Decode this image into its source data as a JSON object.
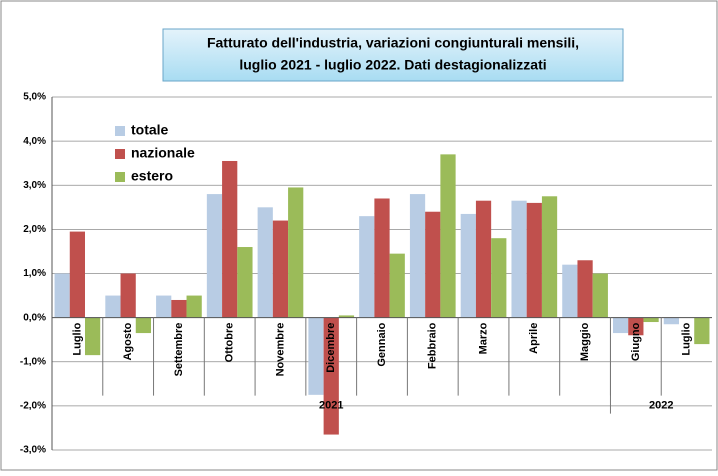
{
  "chart_data": {
    "type": "bar",
    "title": "Fatturato dell'industria, variazioni congiunturali mensili,",
    "subtitle": "luglio 2021 - luglio  2022. Dati destagionalizzati",
    "categories": [
      "Luglio",
      "Agosto",
      "Settembre",
      "Ottobre",
      "Novembre",
      "Dicembre",
      "Gennaio",
      "Febbraio",
      "Marzo",
      "Aprile",
      "Maggio",
      "Giugno",
      "Luglio"
    ],
    "groups": [
      {
        "label": "2021",
        "size": 11
      },
      {
        "label": "2022",
        "size": 2
      }
    ],
    "series": [
      {
        "name": "totale",
        "color": "#b8cce4",
        "values": [
          1.0,
          0.5,
          0.5,
          2.8,
          2.5,
          -1.75,
          2.3,
          2.8,
          2.35,
          2.65,
          1.2,
          -0.35,
          -0.15
        ]
      },
      {
        "name": "nazionale",
        "color": "#c0504d",
        "values": [
          1.95,
          1.0,
          0.4,
          3.55,
          2.2,
          -2.65,
          2.7,
          2.4,
          2.65,
          2.6,
          1.3,
          -0.4,
          0.0
        ]
      },
      {
        "name": "estero",
        "color": "#9bbb59",
        "values": [
          -0.85,
          -0.35,
          0.5,
          1.6,
          2.95,
          0.05,
          1.45,
          3.7,
          1.8,
          2.75,
          1.0,
          -0.1,
          -0.6
        ]
      }
    ],
    "ylim": [
      -3,
      5
    ],
    "yticks": [
      {
        "value": -3,
        "label": "-3,0%"
      },
      {
        "value": -2,
        "label": "-2,0%"
      },
      {
        "value": -1,
        "label": "-1,0%"
      },
      {
        "value": 0,
        "label": "0,0%"
      },
      {
        "value": 1,
        "label": "1,0%"
      },
      {
        "value": 2,
        "label": "2,0%"
      },
      {
        "value": 3,
        "label": "3,0%"
      },
      {
        "value": 4,
        "label": "4,0%"
      },
      {
        "value": 5,
        "label": "5,0%"
      }
    ],
    "grid": true,
    "legend": "upper left"
  }
}
